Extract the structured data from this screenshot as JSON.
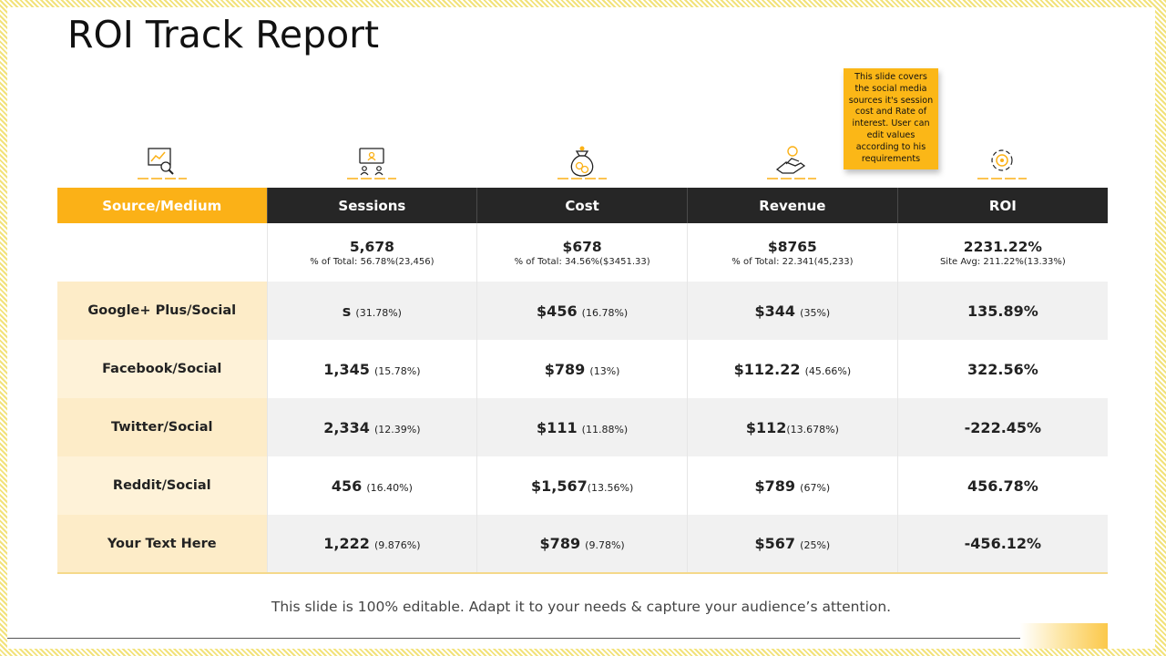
{
  "title": "ROI Track Report",
  "tooltip": "This slide covers the social media sources it's session cost and Rate of interest. User can edit values according to his requirements",
  "icons": [
    "analytics-magnifier-icon",
    "presentation-board-icon",
    "money-bag-icon",
    "hand-coin-icon",
    "gear-cycle-icon"
  ],
  "table": {
    "headers": [
      "Source/Medium",
      "Sessions",
      "Cost",
      "Revenue",
      "ROI"
    ],
    "totals": [
      {
        "main": "5,678",
        "sub": "% of Total: 56.78%(23,456)"
      },
      {
        "main": "$678",
        "sub": "% of Total: 34.56%($3451.33)"
      },
      {
        "main": "$8765",
        "sub": "% of Total: 22.341(45,233)"
      },
      {
        "main": "2231.22%",
        "sub": "Site Avg: 211.22%(13.33%)"
      }
    ],
    "rows": [
      {
        "source": "Google+ Plus/Social",
        "sessions": "s",
        "sessions_pct": "(31.78%)",
        "cost": "$456",
        "cost_pct": "(16.78%)",
        "revenue": "$344",
        "revenue_pct": "(35%)",
        "roi": "135.89%"
      },
      {
        "source": "Facebook/Social",
        "sessions": "1,345",
        "sessions_pct": "(15.78%)",
        "cost": "$789",
        "cost_pct": "(13%)",
        "revenue": "$112.22",
        "revenue_pct": "(45.66%)",
        "roi": "322.56%"
      },
      {
        "source": "Twitter/Social",
        "sessions": "2,334",
        "sessions_pct": "(12.39%)",
        "cost": "$111",
        "cost_pct": "(11.88%)",
        "revenue": "$112",
        "revenue_pct": "(13.678%)",
        "roi": "-222.45%"
      },
      {
        "source": "Reddit/Social",
        "sessions": "456",
        "sessions_pct": "(16.40%)",
        "cost": "$1,567",
        "cost_pct": "(13.56%)",
        "revenue": "$789",
        "revenue_pct": "(67%)",
        "roi": "456.78%"
      },
      {
        "source": "Your Text Here",
        "sessions": "1,222",
        "sessions_pct": "(9.876%)",
        "cost": "$789",
        "cost_pct": "(9.78%)",
        "revenue": "$567",
        "revenue_pct": "(25%)",
        "roi": "-456.12%"
      }
    ]
  },
  "footer": "This slide is 100% editable. Adapt it to your needs & capture your audience’s attention.",
  "colors": {
    "accent": "#fbb117",
    "header_dark": "#262626",
    "source_bg": "#fdecc8",
    "row_shade": "#f1f1f1"
  }
}
